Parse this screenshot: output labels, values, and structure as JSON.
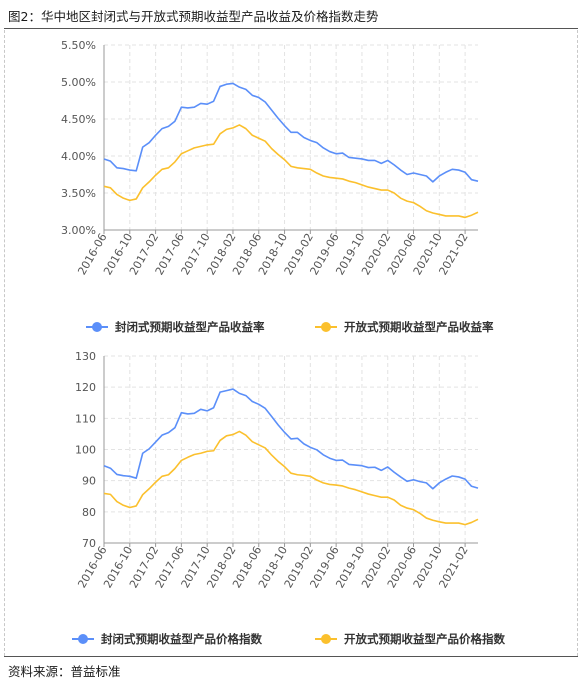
{
  "figure": {
    "title": "图2：华中地区封闭式与开放式预期收益型产品收益及价格指数走势",
    "source": "资料来源：普益标准"
  },
  "colors": {
    "closed": "#5B8FF9",
    "open": "#FBC02D",
    "grid": "#e3e3e3",
    "axis": "#999999"
  },
  "chart_data": [
    {
      "type": "line",
      "title": "",
      "xlabel": "",
      "ylabel": "",
      "ylim": [
        0.03,
        0.055
      ],
      "yticks": [
        "5.50%",
        "5.00%",
        "4.50%",
        "4.00%",
        "3.50%",
        "3.00%"
      ],
      "ytick_values": [
        0.055,
        0.05,
        0.045,
        0.04,
        0.035,
        0.03
      ],
      "x_tick_labels": [
        "2016-06",
        "2016-10",
        "2017-02",
        "2017-06",
        "2017-10",
        "2018-02",
        "2018-06",
        "2018-10",
        "2019-02",
        "2019-06",
        "2019-10",
        "2020-02",
        "2020-06",
        "2020-10",
        "2021-02"
      ],
      "grid": true,
      "legend_position": "bottom",
      "x": [
        "2016-06",
        "2016-07",
        "2016-08",
        "2016-09",
        "2016-10",
        "2016-11",
        "2016-12",
        "2017-01",
        "2017-02",
        "2017-03",
        "2017-04",
        "2017-05",
        "2017-06",
        "2017-07",
        "2017-08",
        "2017-09",
        "2017-10",
        "2017-11",
        "2017-12",
        "2018-01",
        "2018-02",
        "2018-03",
        "2018-04",
        "2018-05",
        "2018-06",
        "2018-07",
        "2018-08",
        "2018-09",
        "2018-10",
        "2018-11",
        "2018-12",
        "2019-01",
        "2019-02",
        "2019-03",
        "2019-04",
        "2019-05",
        "2019-06",
        "2019-07",
        "2019-08",
        "2019-09",
        "2019-10",
        "2019-11",
        "2019-12",
        "2020-01",
        "2020-02",
        "2020-03",
        "2020-04",
        "2020-05",
        "2020-06",
        "2020-07",
        "2020-08",
        "2020-09",
        "2020-10",
        "2020-11",
        "2020-12",
        "2021-01",
        "2021-02",
        "2021-03",
        "2021-04"
      ],
      "series": [
        {
          "name": "封闭式预期收益型产品收益率",
          "color": "#5B8FF9",
          "values": [
            0.0396,
            0.0393,
            0.0384,
            0.0383,
            0.0381,
            0.038,
            0.0412,
            0.0418,
            0.0428,
            0.0437,
            0.044,
            0.0447,
            0.0466,
            0.0465,
            0.0466,
            0.0471,
            0.047,
            0.0474,
            0.0494,
            0.0497,
            0.0498,
            0.0493,
            0.049,
            0.0482,
            0.0479,
            0.0473,
            0.0462,
            0.0451,
            0.0441,
            0.0432,
            0.0432,
            0.0425,
            0.0421,
            0.0418,
            0.0411,
            0.0406,
            0.0403,
            0.0404,
            0.0398,
            0.0397,
            0.0396,
            0.0394,
            0.0394,
            0.039,
            0.0394,
            0.0388,
            0.0381,
            0.0375,
            0.0377,
            0.0375,
            0.0373,
            0.0365,
            0.0373,
            0.0378,
            0.0382,
            0.0381,
            0.0378,
            0.0368,
            0.0366
          ]
        },
        {
          "name": "开放式预期收益型产品收益率",
          "color": "#FBC02D",
          "values": [
            0.0359,
            0.0357,
            0.0348,
            0.0343,
            0.034,
            0.0342,
            0.0357,
            0.0365,
            0.0374,
            0.0382,
            0.0384,
            0.0392,
            0.0403,
            0.0407,
            0.0411,
            0.0413,
            0.0415,
            0.0416,
            0.043,
            0.0436,
            0.0438,
            0.0442,
            0.0437,
            0.0428,
            0.0424,
            0.042,
            0.041,
            0.0402,
            0.0395,
            0.0386,
            0.0384,
            0.0383,
            0.0382,
            0.0377,
            0.0373,
            0.0371,
            0.037,
            0.0369,
            0.0366,
            0.0364,
            0.0361,
            0.0358,
            0.0356,
            0.0354,
            0.0354,
            0.035,
            0.0343,
            0.0339,
            0.0337,
            0.0332,
            0.0326,
            0.0323,
            0.0321,
            0.0319,
            0.0319,
            0.0319,
            0.0317,
            0.032,
            0.0324
          ]
        }
      ]
    },
    {
      "type": "line",
      "title": "",
      "xlabel": "",
      "ylabel": "",
      "ylim": [
        70,
        130
      ],
      "yticks": [
        "130",
        "120",
        "110",
        "100",
        "90",
        "80",
        "70"
      ],
      "ytick_values": [
        130,
        120,
        110,
        100,
        90,
        80,
        70
      ],
      "x_tick_labels": [
        "2016-06",
        "2016-10",
        "2017-02",
        "2017-06",
        "2017-10",
        "2018-02",
        "2018-06",
        "2018-10",
        "2019-02",
        "2019-06",
        "2019-10",
        "2020-02",
        "2020-06",
        "2020-10",
        "2021-02"
      ],
      "grid": true,
      "legend_position": "bottom",
      "x": [
        "2016-06",
        "2016-07",
        "2016-08",
        "2016-09",
        "2016-10",
        "2016-11",
        "2016-12",
        "2017-01",
        "2017-02",
        "2017-03",
        "2017-04",
        "2017-05",
        "2017-06",
        "2017-07",
        "2017-08",
        "2017-09",
        "2017-10",
        "2017-11",
        "2017-12",
        "2018-01",
        "2018-02",
        "2018-03",
        "2018-04",
        "2018-05",
        "2018-06",
        "2018-07",
        "2018-08",
        "2018-09",
        "2018-10",
        "2018-11",
        "2018-12",
        "2019-01",
        "2019-02",
        "2019-03",
        "2019-04",
        "2019-05",
        "2019-06",
        "2019-07",
        "2019-08",
        "2019-09",
        "2019-10",
        "2019-11",
        "2019-12",
        "2020-01",
        "2020-02",
        "2020-03",
        "2020-04",
        "2020-05",
        "2020-06",
        "2020-07",
        "2020-08",
        "2020-09",
        "2020-10",
        "2020-11",
        "2020-12",
        "2021-01",
        "2021-02",
        "2021-03",
        "2021-04"
      ],
      "series": [
        {
          "name": "封闭式预期收益型产品价格指数",
          "color": "#5B8FF9",
          "values": [
            94.8,
            94.0,
            92.0,
            91.6,
            91.4,
            90.8,
            98.8,
            100.2,
            102.4,
            104.6,
            105.4,
            107.0,
            111.8,
            111.4,
            111.6,
            112.9,
            112.4,
            113.4,
            118.4,
            118.9,
            119.4,
            118.0,
            117.3,
            115.4,
            114.5,
            113.2,
            110.6,
            107.9,
            105.5,
            103.4,
            103.6,
            101.8,
            100.7,
            99.9,
            98.3,
            97.2,
            96.5,
            96.6,
            95.2,
            95.0,
            94.8,
            94.2,
            94.3,
            93.3,
            94.4,
            92.7,
            91.2,
            89.8,
            90.3,
            89.7,
            89.3,
            87.4,
            89.3,
            90.5,
            91.5,
            91.2,
            90.5,
            88.2,
            87.6
          ]
        },
        {
          "name": "开放式预期收益型产品价格指数",
          "color": "#FBC02D",
          "values": [
            85.9,
            85.6,
            83.3,
            82.1,
            81.4,
            81.9,
            85.5,
            87.4,
            89.5,
            91.4,
            91.9,
            93.9,
            96.5,
            97.5,
            98.4,
            98.8,
            99.4,
            99.6,
            102.9,
            104.4,
            104.8,
            105.8,
            104.6,
            102.5,
            101.5,
            100.5,
            98.2,
            96.2,
            94.5,
            92.4,
            91.9,
            91.7,
            91.4,
            90.2,
            89.3,
            88.8,
            88.6,
            88.3,
            87.6,
            87.1,
            86.4,
            85.7,
            85.2,
            84.7,
            84.7,
            83.8,
            82.1,
            81.2,
            80.7,
            79.5,
            78.0,
            77.3,
            76.8,
            76.4,
            76.4,
            76.4,
            75.9,
            76.6,
            77.6
          ]
        }
      ]
    }
  ]
}
